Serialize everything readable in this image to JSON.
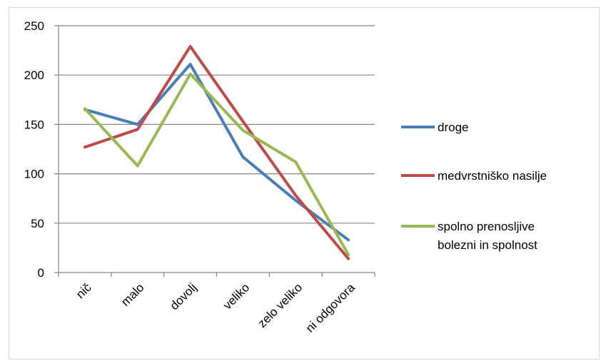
{
  "chart_data": {
    "type": "line",
    "categories": [
      "nič",
      "malo",
      "dovolj",
      "veliko",
      "zelo veliko",
      "ni odgovora"
    ],
    "ylim": [
      0,
      250
    ],
    "yticks": [
      0,
      50,
      100,
      150,
      200,
      250
    ],
    "grid": true,
    "legend": "right",
    "series": [
      {
        "name": "droge",
        "color": "#4a7ebb",
        "values": [
          165,
          150,
          211,
          117,
          73,
          33
        ]
      },
      {
        "name": "medvrstniško nasilje",
        "color": "#be4b48",
        "values": [
          127,
          145,
          229,
          153,
          78,
          14
        ]
      },
      {
        "name": "spolno prenosljive bolezni in spolnost",
        "name_lines": [
          "spolno prenosljive",
          "bolezni in spolnost"
        ],
        "color": "#98b954",
        "values": [
          166,
          108,
          201,
          144,
          112,
          18
        ]
      }
    ]
  }
}
